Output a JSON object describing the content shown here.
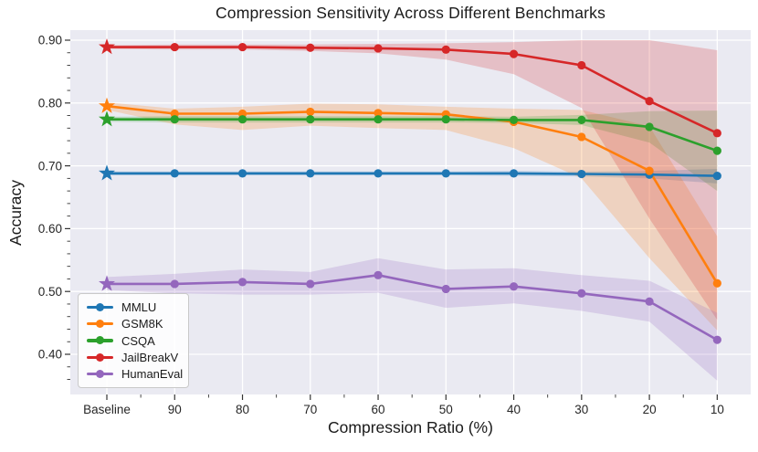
{
  "chart_data": {
    "type": "line",
    "title": "Compression Sensitivity Across Different Benchmarks",
    "xlabel": "Compression Ratio (%)",
    "ylabel": "Accuracy",
    "categories": [
      "Baseline",
      "90",
      "80",
      "70",
      "60",
      "50",
      "40",
      "30",
      "20",
      "10"
    ],
    "y_ticks": [
      0.4,
      0.5,
      0.6,
      0.7,
      0.8,
      0.9
    ],
    "ylim": [
      0.34,
      0.916
    ],
    "grid": true,
    "legend_position": "lower-left",
    "plot_background_color": "#eaeaf2",
    "grid_color": "#ffffff",
    "baseline_marker": "star",
    "point_marker": "circle",
    "series": [
      {
        "name": "MMLU",
        "color": "#1f77b4",
        "values": [
          0.688,
          0.688,
          0.688,
          0.688,
          0.688,
          0.688,
          0.688,
          0.687,
          0.686,
          0.684
        ],
        "band_lower": [
          0.685,
          0.685,
          0.685,
          0.685,
          0.685,
          0.685,
          0.684,
          0.683,
          0.68,
          0.672
        ],
        "band_upper": [
          0.691,
          0.691,
          0.691,
          0.691,
          0.691,
          0.691,
          0.692,
          0.691,
          0.692,
          0.695
        ]
      },
      {
        "name": "GSM8K",
        "color": "#ff7f0e",
        "values": [
          0.795,
          0.783,
          0.783,
          0.786,
          0.784,
          0.782,
          0.77,
          0.746,
          0.692,
          0.513
        ],
        "band_lower": [
          0.789,
          0.766,
          0.757,
          0.764,
          0.76,
          0.757,
          0.728,
          0.68,
          0.553,
          0.438
        ],
        "band_upper": [
          0.801,
          0.791,
          0.794,
          0.799,
          0.798,
          0.794,
          0.791,
          0.789,
          0.763,
          0.588
        ]
      },
      {
        "name": "CSQA",
        "color": "#2ca02c",
        "values": [
          0.774,
          0.774,
          0.774,
          0.774,
          0.774,
          0.774,
          0.773,
          0.773,
          0.762,
          0.724
        ],
        "band_lower": [
          0.77,
          0.769,
          0.769,
          0.769,
          0.769,
          0.769,
          0.768,
          0.765,
          0.737,
          0.66
        ],
        "band_upper": [
          0.778,
          0.779,
          0.779,
          0.779,
          0.779,
          0.779,
          0.778,
          0.781,
          0.787,
          0.788
        ]
      },
      {
        "name": "JailBreakV",
        "color": "#d62728",
        "values": [
          0.889,
          0.889,
          0.889,
          0.888,
          0.887,
          0.885,
          0.878,
          0.86,
          0.803,
          0.752
        ],
        "band_lower": [
          0.886,
          0.885,
          0.885,
          0.883,
          0.879,
          0.869,
          0.846,
          0.792,
          0.616,
          0.455
        ],
        "band_upper": [
          0.892,
          0.893,
          0.893,
          0.893,
          0.894,
          0.895,
          0.897,
          0.9,
          0.9,
          0.884
        ]
      },
      {
        "name": "HumanEval",
        "color": "#9467bd",
        "values": [
          0.512,
          0.512,
          0.515,
          0.512,
          0.526,
          0.504,
          0.508,
          0.497,
          0.484,
          0.423
        ],
        "band_lower": [
          0.502,
          0.497,
          0.495,
          0.495,
          0.498,
          0.474,
          0.481,
          0.469,
          0.452,
          0.358
        ],
        "band_upper": [
          0.523,
          0.528,
          0.535,
          0.531,
          0.553,
          0.535,
          0.537,
          0.526,
          0.517,
          0.466
        ]
      }
    ]
  }
}
